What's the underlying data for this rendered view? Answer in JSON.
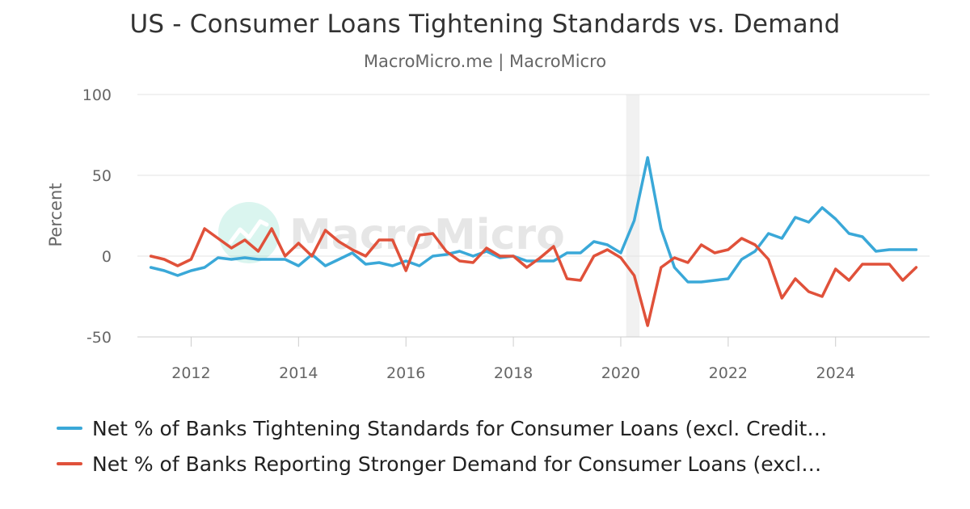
{
  "title": "US - Consumer Loans Tightening Standards vs. Demand",
  "subtitle": "MacroMicro.me | MacroMicro",
  "watermark": "MacroMicro",
  "chart_data": {
    "type": "line",
    "ylabel": "Percent",
    "ylim": [
      -50,
      100
    ],
    "yticks": [
      100,
      50,
      0,
      -50
    ],
    "xlim": [
      2011.0,
      2025.75
    ],
    "xticks": [
      2012,
      2014,
      2016,
      2018,
      2020,
      2022,
      2024
    ],
    "grid": "horizontal",
    "legend": "bottom",
    "shaded_ranges": [
      [
        2020.1,
        2020.35
      ]
    ],
    "series": [
      {
        "name": "Net % of Banks Tightening Standards for Consumer Loans (excl. Credit…",
        "color": "#3aa8d8",
        "x": [
          2011.25,
          2011.5,
          2011.75,
          2012.0,
          2012.25,
          2012.5,
          2012.75,
          2013.0,
          2013.25,
          2013.5,
          2013.75,
          2014.0,
          2014.25,
          2014.5,
          2014.75,
          2015.0,
          2015.25,
          2015.5,
          2015.75,
          2016.0,
          2016.25,
          2016.5,
          2016.75,
          2017.0,
          2017.25,
          2017.5,
          2017.75,
          2018.0,
          2018.25,
          2018.5,
          2018.75,
          2019.0,
          2019.25,
          2019.5,
          2019.75,
          2020.0,
          2020.25,
          2020.5,
          2020.75,
          2021.0,
          2021.25,
          2021.5,
          2021.75,
          2022.0,
          2022.25,
          2022.5,
          2022.75,
          2023.0,
          2023.25,
          2023.5,
          2023.75,
          2024.0,
          2024.25,
          2024.5,
          2024.75,
          2025.0,
          2025.25,
          2025.5
        ],
        "values": [
          -7,
          -9,
          -12,
          -9,
          -7,
          -1,
          -2,
          -1,
          -2,
          -2,
          -2,
          -6,
          1,
          -6,
          -2,
          2,
          -5,
          -4,
          -6,
          -3,
          -6,
          0,
          1,
          3,
          0,
          3,
          -1,
          0,
          -3,
          -3,
          -3,
          2,
          2,
          9,
          7,
          2,
          22,
          61,
          17,
          -7,
          -16,
          -16,
          -15,
          -14,
          -2,
          3,
          14,
          11,
          24,
          21,
          30,
          23,
          14,
          12,
          3,
          4,
          4,
          4
        ]
      },
      {
        "name": "Net % of Banks Reporting Stronger Demand for Consumer Loans (excl…",
        "color": "#e0513a",
        "x": [
          2011.25,
          2011.5,
          2011.75,
          2012.0,
          2012.25,
          2012.5,
          2012.75,
          2013.0,
          2013.25,
          2013.5,
          2013.75,
          2014.0,
          2014.25,
          2014.5,
          2014.75,
          2015.0,
          2015.25,
          2015.5,
          2015.75,
          2016.0,
          2016.25,
          2016.5,
          2016.75,
          2017.0,
          2017.25,
          2017.5,
          2017.75,
          2018.0,
          2018.25,
          2018.5,
          2018.75,
          2019.0,
          2019.25,
          2019.5,
          2019.75,
          2020.0,
          2020.25,
          2020.5,
          2020.75,
          2021.0,
          2021.25,
          2021.5,
          2021.75,
          2022.0,
          2022.25,
          2022.5,
          2022.75,
          2023.0,
          2023.25,
          2023.5,
          2023.75,
          2024.0,
          2024.25,
          2024.5,
          2024.75,
          2025.0,
          2025.25,
          2025.5
        ],
        "values": [
          0,
          -2,
          -6,
          -2,
          17,
          11,
          5,
          10,
          3,
          17,
          0,
          8,
          0,
          16,
          9,
          4,
          0,
          10,
          10,
          -9,
          13,
          14,
          3,
          -3,
          -4,
          5,
          0,
          0,
          -7,
          -1,
          6,
          -14,
          -15,
          0,
          4,
          -1,
          -12,
          -43,
          -7,
          -1,
          -4,
          7,
          2,
          4,
          11,
          7,
          -2,
          -26,
          -14,
          -22,
          -25,
          -8,
          -15,
          -5,
          -5,
          -5,
          -15,
          -7
        ]
      }
    ]
  }
}
